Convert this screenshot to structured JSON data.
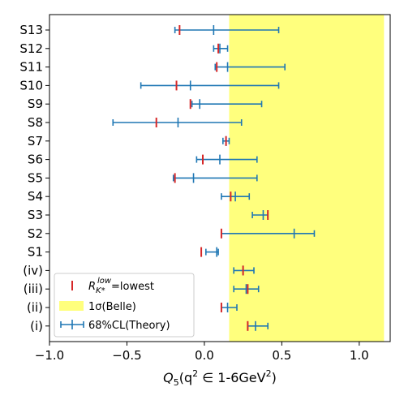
{
  "chart_data": {
    "type": "scatter",
    "x_axis": {
      "label_main": "Q",
      "label_sub": "5",
      "label_open": "(q",
      "label_sup": "2",
      "label_rest": " ∈ 1-6GeV",
      "label_sup2": "2",
      "label_close": ")",
      "xlim": [
        -1.0,
        1.2
      ],
      "ticks": [
        -1.0,
        -0.5,
        0.0,
        0.5,
        1.0
      ],
      "tick_labels": [
        "−1.0",
        "−0.5",
        "0.0",
        "0.5",
        "1.0"
      ]
    },
    "categories": [
      "S13",
      "S12",
      "S11",
      "S10",
      "S9",
      "S8",
      "S7",
      "S6",
      "S5",
      "S4",
      "S3",
      "S2",
      "S1",
      "(iv)",
      "(iii)",
      "(ii)",
      "(i)"
    ],
    "belle_band": {
      "x_min": 0.16,
      "x_max": 1.16,
      "color": "#ffff66"
    },
    "series": [
      {
        "name": "68%CL(Theory)",
        "color": "#1f77b4",
        "center": [
          0.06,
          0.1,
          0.15,
          -0.09,
          -0.03,
          -0.17,
          0.14,
          0.1,
          -0.07,
          0.2,
          0.38,
          0.58,
          0.08,
          0.25,
          0.27,
          0.15,
          0.33
        ],
        "low": [
          -0.19,
          0.06,
          0.07,
          -0.41,
          -0.08,
          -0.59,
          0.12,
          -0.05,
          -0.2,
          0.11,
          0.31,
          0.11,
          0.01,
          0.19,
          0.19,
          0.11,
          0.28
        ],
        "high": [
          0.48,
          0.15,
          0.52,
          0.48,
          0.37,
          0.24,
          0.16,
          0.34,
          0.34,
          0.29,
          0.41,
          0.71,
          0.09,
          0.32,
          0.35,
          0.21,
          0.41
        ]
      },
      {
        "name": "lowest",
        "color": "#d62728",
        "x": [
          -0.16,
          0.09,
          0.08,
          -0.18,
          -0.09,
          -0.31,
          0.14,
          -0.01,
          -0.19,
          0.17,
          0.41,
          0.11,
          -0.02,
          0.25,
          0.28,
          0.11,
          0.28
        ]
      }
    ],
    "legend": {
      "position": "lower-left",
      "items": [
        {
          "kind": "red-bar",
          "label_main": "R",
          "label_sub": "K*",
          "label_sup": "low",
          "label_rest": "=lowest"
        },
        {
          "kind": "band",
          "label": "1σ(Belle)"
        },
        {
          "kind": "errorbar",
          "label": "68%CL(Theory)"
        }
      ]
    },
    "grid": false
  }
}
